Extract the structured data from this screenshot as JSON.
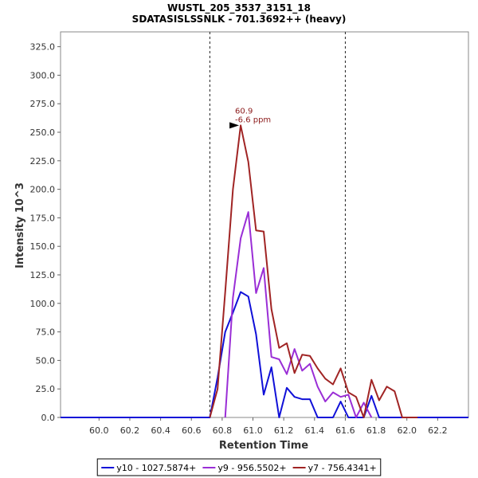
{
  "chart_data": {
    "type": "line",
    "title": "WUSTL_205_3537_3151_18",
    "subtitle": "SDATASISLSSNLK - 701.3692++ (heavy)",
    "xlabel": "Retention Time",
    "ylabel": "Intensity 10^3",
    "xlim": [
      59.75,
      62.4
    ],
    "ylim": [
      0,
      338
    ],
    "xticks": [
      "60.0",
      "60.2",
      "60.4",
      "60.6",
      "60.8",
      "61.0",
      "61.2",
      "61.4",
      "61.6",
      "61.8",
      "62.0",
      "62.2"
    ],
    "yticks": [
      "0.0",
      "25.0",
      "50.0",
      "75.0",
      "100.0",
      "125.0",
      "150.0",
      "175.0",
      "200.0",
      "225.0",
      "250.0",
      "275.0",
      "300.0",
      "325.0"
    ],
    "vlines": [
      60.72,
      61.6
    ],
    "annotation": {
      "x": 60.92,
      "y": 256,
      "line1": "60.9",
      "line2": "-6.6 ppm",
      "color": "#8b1a1a"
    },
    "series": [
      {
        "name": "y10 - 1027.5874+",
        "color": "#1010d8",
        "x": [
          59.75,
          60.72,
          60.77,
          60.82,
          60.87,
          60.92,
          60.97,
          61.02,
          61.07,
          61.12,
          61.17,
          61.22,
          61.27,
          61.32,
          61.37,
          61.42,
          61.47,
          61.52,
          61.57,
          61.62,
          61.67,
          61.72,
          61.77,
          61.82,
          61.87,
          61.92,
          61.97,
          62.02,
          62.07,
          62.4
        ],
        "y": [
          0,
          0,
          35,
          75,
          92,
          110,
          106,
          73,
          20,
          44,
          0,
          26,
          18,
          16,
          16,
          0,
          0,
          0,
          14,
          0,
          0,
          0,
          19,
          0,
          0,
          0,
          0,
          0,
          0,
          0
        ]
      },
      {
        "name": "y9 - 956.5502+",
        "color": "#9a2ed6",
        "x": [
          60.82,
          60.87,
          60.92,
          60.97,
          61.02,
          61.07,
          61.12,
          61.17,
          61.22,
          61.27,
          61.32,
          61.37,
          61.42,
          61.47,
          61.52,
          61.57,
          61.62,
          61.67,
          61.72,
          61.77
        ],
        "y": [
          0,
          105,
          157,
          180,
          109,
          131,
          53,
          51,
          38,
          60,
          41,
          47,
          27,
          14,
          22,
          18,
          20,
          0,
          13,
          0
        ]
      },
      {
        "name": "y7 - 756.4341+",
        "color": "#a02424",
        "x": [
          60.72,
          60.77,
          60.82,
          60.87,
          60.92,
          60.97,
          61.02,
          61.07,
          61.12,
          61.17,
          61.22,
          61.27,
          61.32,
          61.37,
          61.42,
          61.47,
          61.52,
          61.57,
          61.62,
          61.67,
          61.72,
          61.77,
          61.82,
          61.87,
          61.92,
          61.97,
          62.02,
          62.07
        ],
        "y": [
          0,
          25,
          110,
          200,
          256,
          224,
          164,
          163,
          95,
          61,
          65,
          39,
          55,
          54,
          43,
          34,
          29,
          43,
          22,
          18,
          0,
          33,
          15,
          27,
          23,
          0,
          0,
          0
        ]
      }
    ],
    "legend_position": "bottom-center"
  }
}
